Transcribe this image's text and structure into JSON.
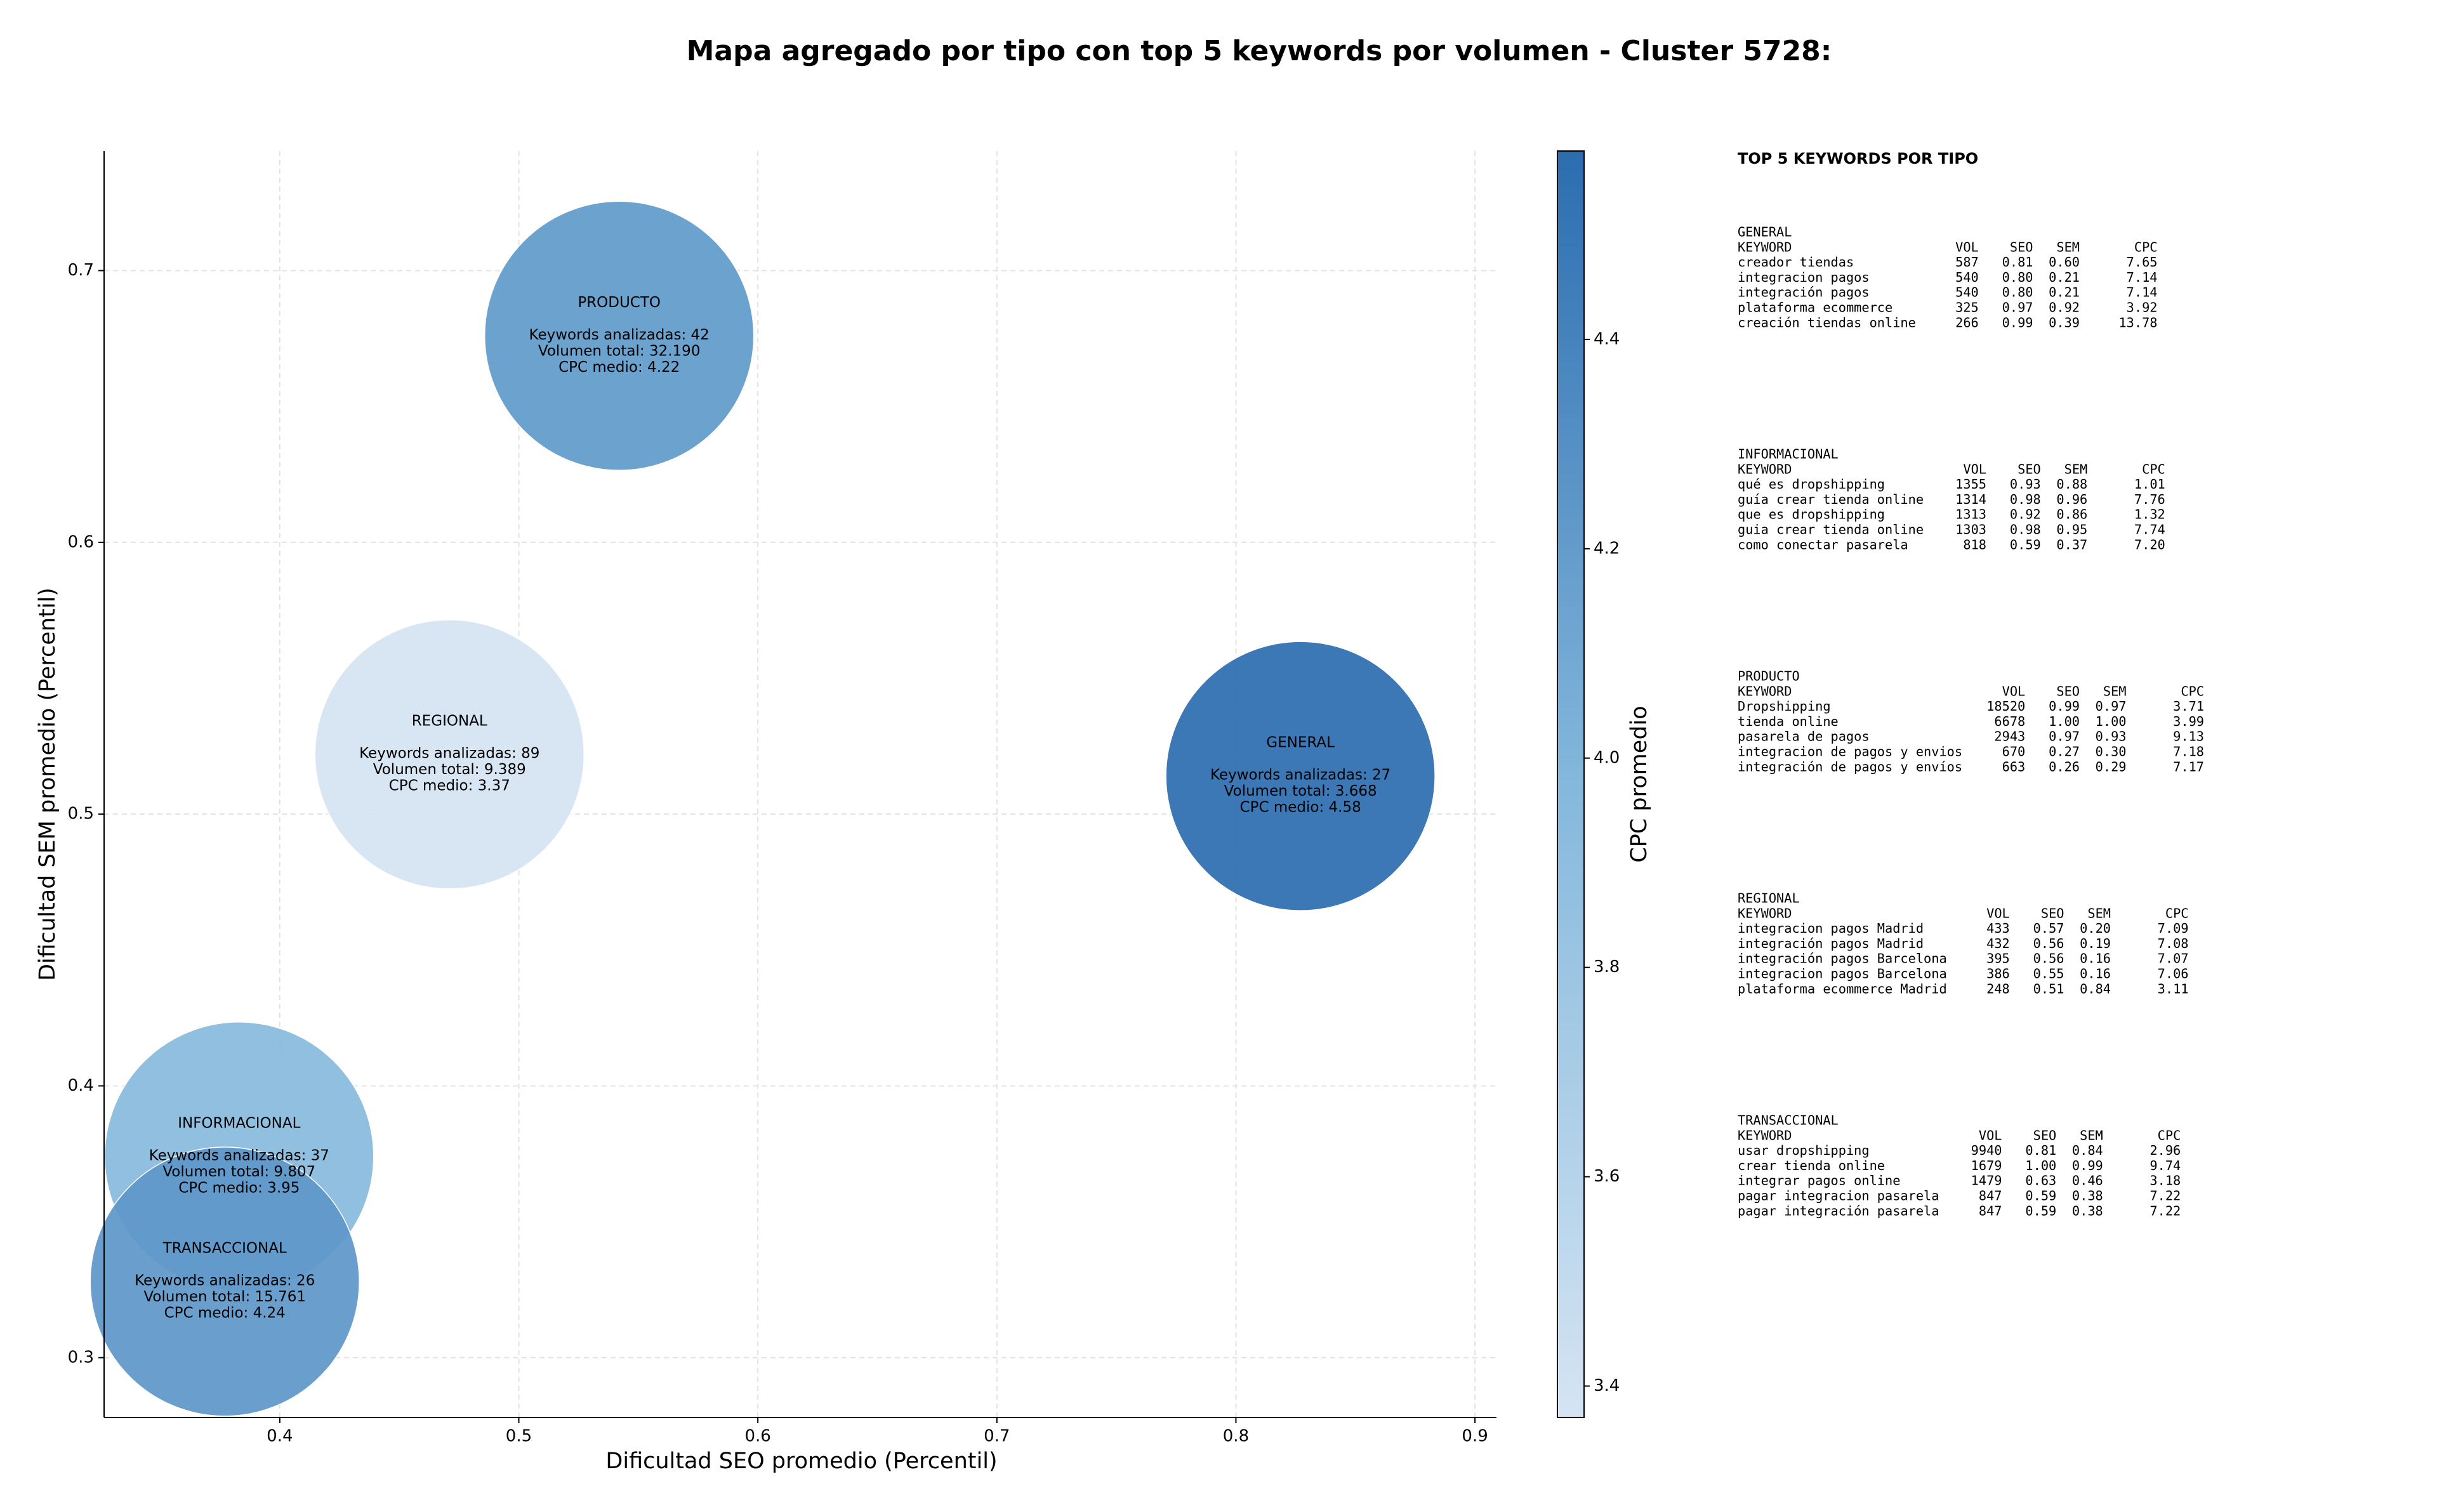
{
  "chart_data": {
    "type": "bubble",
    "title": "Mapa agregado por tipo con top 5 keywords por volumen - Cluster 5728:",
    "xlabel": "Dificultad SEO promedio (Percentil)",
    "ylabel": "Dificultad SEM promedio (Percentil)",
    "colorbar_label": "CPC promedio",
    "xlim": [
      0.3265,
      0.909
    ],
    "ylim": [
      0.278,
      0.744
    ],
    "xticks": [
      0.4,
      0.5,
      0.6,
      0.7,
      0.8,
      0.9
    ],
    "yticks": [
      0.3,
      0.4,
      0.5,
      0.6,
      0.7
    ],
    "clim": [
      3.37,
      4.58
    ],
    "cticks": [
      3.4,
      3.6,
      3.8,
      {
        "value": 4.0,
        "label": "4.0"
      },
      4.2,
      4.4
    ],
    "colormap": [
      "#d5e4f3",
      "#84b8dc",
      "#2c6db0"
    ],
    "grid": true,
    "points": [
      {
        "name": "GENERAL",
        "x": 0.827,
        "y": 0.514,
        "cpc": 4.58,
        "lines": [
          "Keywords analizadas: 27",
          "Volumen total: 3.668",
          "CPC medio: 4.58"
        ]
      },
      {
        "name": "INFORMACIONAL",
        "x": 0.383,
        "y": 0.374,
        "cpc": 3.95,
        "lines": [
          "Keywords analizadas: 37",
          "Volumen total: 9.807",
          "CPC medio: 3.95"
        ]
      },
      {
        "name": "PRODUCTO",
        "x": 0.542,
        "y": 0.676,
        "cpc": 4.22,
        "lines": [
          "Keywords analizadas: 42",
          "Volumen total: 32.190",
          "CPC medio: 4.22"
        ]
      },
      {
        "name": "REGIONAL",
        "x": 0.471,
        "y": 0.522,
        "cpc": 3.37,
        "lines": [
          "Keywords analizadas: 89",
          "Volumen total: 9.389",
          "CPC medio: 3.37"
        ]
      },
      {
        "name": "TRANSACCIONAL",
        "x": 0.377,
        "y": 0.328,
        "cpc": 4.24,
        "lines": [
          "Keywords analizadas: 26",
          "Volumen total: 15.761",
          "CPC medio: 4.24"
        ]
      }
    ]
  },
  "keyword_panel": {
    "title": "TOP 5 KEYWORDS POR TIPO",
    "header": [
      "KEYWORD",
      "VOL",
      "SEO",
      "SEM",
      "CPC"
    ],
    "groups": [
      {
        "name": "GENERAL",
        "rows": [
          [
            "creador tiendas",
            "587",
            "0.81",
            "0.60",
            "7.65"
          ],
          [
            "integracion pagos",
            "540",
            "0.80",
            "0.21",
            "7.14"
          ],
          [
            "integración pagos",
            "540",
            "0.80",
            "0.21",
            "7.14"
          ],
          [
            "plataforma ecommerce",
            "325",
            "0.97",
            "0.92",
            "3.92"
          ],
          [
            "creación tiendas online",
            "266",
            "0.99",
            "0.39",
            "13.78"
          ]
        ]
      },
      {
        "name": "INFORMACIONAL",
        "rows": [
          [
            "qué es dropshipping",
            "1355",
            "0.93",
            "0.88",
            "1.01"
          ],
          [
            "guía crear tienda online",
            "1314",
            "0.98",
            "0.96",
            "7.76"
          ],
          [
            "que es dropshipping",
            "1313",
            "0.92",
            "0.86",
            "1.32"
          ],
          [
            "guia crear tienda online",
            "1303",
            "0.98",
            "0.95",
            "7.74"
          ],
          [
            "como conectar pasarela",
            "818",
            "0.59",
            "0.37",
            "7.20"
          ]
        ]
      },
      {
        "name": "PRODUCTO",
        "rows": [
          [
            "Dropshipping",
            "18520",
            "0.99",
            "0.97",
            "3.71"
          ],
          [
            "tienda online",
            "6678",
            "1.00",
            "1.00",
            "3.99"
          ],
          [
            "pasarela de pagos",
            "2943",
            "0.97",
            "0.93",
            "9.13"
          ],
          [
            "integracion de pagos y envios",
            "670",
            "0.27",
            "0.30",
            "7.18"
          ],
          [
            "integración de pagos y envíos",
            "663",
            "0.26",
            "0.29",
            "7.17"
          ]
        ]
      },
      {
        "name": "REGIONAL",
        "rows": [
          [
            "integracion pagos Madrid",
            "433",
            "0.57",
            "0.20",
            "7.09"
          ],
          [
            "integración pagos Madrid",
            "432",
            "0.56",
            "0.19",
            "7.08"
          ],
          [
            "integración pagos Barcelona",
            "395",
            "0.56",
            "0.16",
            "7.07"
          ],
          [
            "integracion pagos Barcelona",
            "386",
            "0.55",
            "0.16",
            "7.06"
          ],
          [
            "plataforma ecommerce Madrid",
            "248",
            "0.51",
            "0.84",
            "3.11"
          ]
        ]
      },
      {
        "name": "TRANSACCIONAL",
        "rows": [
          [
            "usar dropshipping",
            "9940",
            "0.81",
            "0.84",
            "2.96"
          ],
          [
            "crear tienda online",
            "1679",
            "1.00",
            "0.99",
            "9.74"
          ],
          [
            "integrar pagos online",
            "1479",
            "0.63",
            "0.46",
            "3.18"
          ],
          [
            "pagar integracion pasarela",
            "847",
            "0.59",
            "0.38",
            "7.22"
          ],
          [
            "pagar integración pasarela",
            "847",
            "0.59",
            "0.38",
            "7.22"
          ]
        ]
      }
    ]
  }
}
